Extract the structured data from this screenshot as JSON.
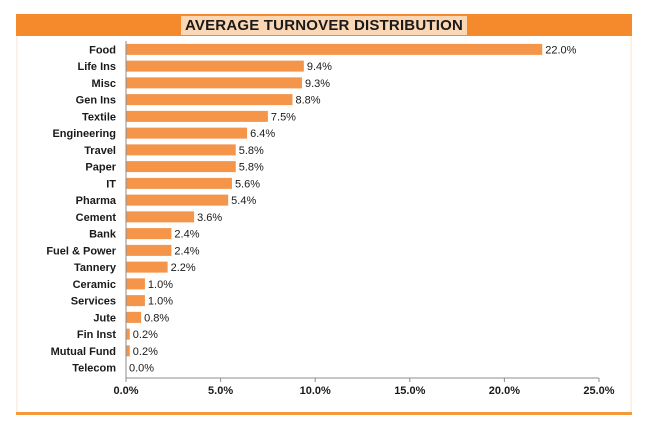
{
  "title": "AVERAGE TURNOVER DISTRIBUTION",
  "colors": {
    "bar": "#f4954a",
    "title_bg": "#f48a2c",
    "title_text_bg": "#fbd7b5",
    "frame_bg": "#fdf1e6"
  },
  "chart_data": {
    "type": "bar",
    "orientation": "horizontal",
    "title": "AVERAGE TURNOVER DISTRIBUTION",
    "categories": [
      "Food",
      "Life Ins",
      "Misc",
      "Gen Ins",
      "Textile",
      "Engineering",
      "Travel",
      "Paper",
      "IT",
      "Pharma",
      "Cement",
      "Bank",
      "Fuel & Power",
      "Tannery",
      "Ceramic",
      "Services",
      "Jute",
      "Fin Inst",
      "Mutual Fund",
      "Telecom"
    ],
    "values": [
      22.0,
      9.4,
      9.3,
      8.8,
      7.5,
      6.4,
      5.8,
      5.8,
      5.6,
      5.4,
      3.6,
      2.4,
      2.4,
      2.2,
      1.0,
      1.0,
      0.8,
      0.2,
      0.2,
      0.0
    ],
    "value_labels": [
      "22.0%",
      "9.4%",
      "9.3%",
      "8.8%",
      "7.5%",
      "6.4%",
      "5.8%",
      "5.8%",
      "5.6%",
      "5.4%",
      "3.6%",
      "2.4%",
      "2.4%",
      "2.2%",
      "1.0%",
      "1.0%",
      "0.8%",
      "0.2%",
      "0.2%",
      "0.0%"
    ],
    "xlim": [
      0,
      25
    ],
    "xticks": [
      0,
      5,
      10,
      15,
      20,
      25
    ],
    "xtick_labels": [
      "0.0%",
      "5.0%",
      "10.0%",
      "15.0%",
      "20.0%",
      "25.0%"
    ],
    "xlabel": "",
    "ylabel": "",
    "grid": false,
    "legend": "none"
  }
}
